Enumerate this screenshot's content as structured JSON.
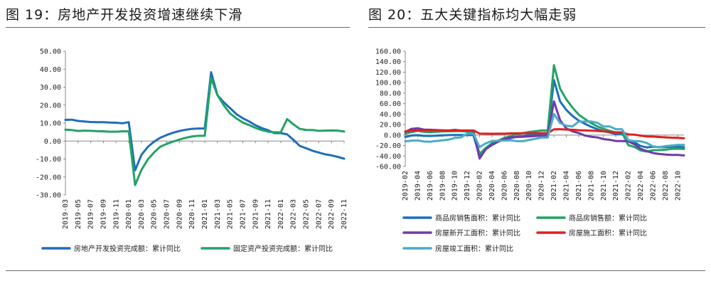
{
  "titles": {
    "left": "图 19：房地产开发投资增速继续下滑",
    "right": "图 20：五大关键指标均大幅走弱"
  },
  "chart_data": [
    {
      "type": "line",
      "x": [
        "2019-03",
        "2019-04",
        "2019-05",
        "2019-06",
        "2019-07",
        "2019-08",
        "2019-09",
        "2019-10",
        "2019-11",
        "2019-12",
        "2020-01",
        "2020-02",
        "2020-03",
        "2020-04",
        "2020-05",
        "2020-06",
        "2020-07",
        "2020-08",
        "2020-09",
        "2020-10",
        "2020-11",
        "2020-12",
        "2021-01",
        "2021-02",
        "2021-03",
        "2021-04",
        "2021-05",
        "2021-06",
        "2021-07",
        "2021-08",
        "2021-09",
        "2021-10",
        "2021-11",
        "2021-12",
        "2022-01",
        "2022-02",
        "2022-03",
        "2022-04",
        "2022-05",
        "2022-06",
        "2022-07",
        "2022-08",
        "2022-09",
        "2022-10",
        "2022-11"
      ],
      "xticks": [
        "2019-03",
        "2019-05",
        "2019-07",
        "2019-09",
        "2019-11",
        "2020-01",
        "2020-03",
        "2020-05",
        "2020-07",
        "2020-09",
        "2020-11",
        "2021-01",
        "2021-03",
        "2021-05",
        "2021-07",
        "2021-09",
        "2021-11",
        "2022-01",
        "2022-03",
        "2022-05",
        "2022-07",
        "2022-09",
        "2022-11"
      ],
      "ylim": [
        -30,
        50
      ],
      "yticks": [
        "-30.00",
        "-20.00",
        "-10.00",
        "0.00",
        "10.00",
        "20.00",
        "30.00",
        "40.00",
        "50.00"
      ],
      "series": [
        {
          "name": "房地产开发投资完成额：累计同比",
          "color": "#1f6fb8",
          "values": [
            11.8,
            11.9,
            11.2,
            10.9,
            10.6,
            10.5,
            10.5,
            10.3,
            10.2,
            9.9,
            10.5,
            -16.3,
            -7.7,
            -3.3,
            -0.3,
            1.9,
            3.4,
            4.6,
            5.6,
            6.3,
            6.8,
            7.0,
            7.0,
            38.3,
            25.6,
            21.6,
            18.3,
            15.0,
            12.7,
            10.9,
            8.8,
            7.2,
            6.0,
            4.4,
            4.4,
            3.7,
            0.7,
            -2.7,
            -4.0,
            -5.4,
            -6.4,
            -7.4,
            -8.0,
            -8.8,
            -9.8
          ]
        },
        {
          "name": "固定资产投资完成额：累计同比",
          "color": "#21a366",
          "values": [
            6.3,
            6.1,
            5.6,
            5.8,
            5.7,
            5.5,
            5.4,
            5.2,
            5.2,
            5.4,
            5.4,
            -24.5,
            -16.1,
            -10.3,
            -6.3,
            -3.1,
            -1.6,
            -0.3,
            0.8,
            1.8,
            2.6,
            2.9,
            2.9,
            35.0,
            25.6,
            19.9,
            15.4,
            12.6,
            10.3,
            8.9,
            7.3,
            6.1,
            5.2,
            4.9,
            4.9,
            12.2,
            9.3,
            6.8,
            6.2,
            6.1,
            5.7,
            5.8,
            5.9,
            5.8,
            5.3
          ]
        }
      ]
    },
    {
      "type": "line",
      "x": [
        "2019-02",
        "2019-03",
        "2019-04",
        "2019-05",
        "2019-06",
        "2019-07",
        "2019-08",
        "2019-09",
        "2019-10",
        "2019-11",
        "2019-12",
        "2020-01",
        "2020-02",
        "2020-03",
        "2020-04",
        "2020-05",
        "2020-06",
        "2020-07",
        "2020-08",
        "2020-09",
        "2020-10",
        "2020-11",
        "2020-12",
        "2021-01",
        "2021-02",
        "2021-03",
        "2021-04",
        "2021-05",
        "2021-06",
        "2021-07",
        "2021-08",
        "2021-09",
        "2021-10",
        "2021-11",
        "2021-12",
        "2022-01",
        "2022-02",
        "2022-03",
        "2022-04",
        "2022-05",
        "2022-06",
        "2022-07",
        "2022-08",
        "2022-09",
        "2022-10",
        "2022-11"
      ],
      "xticks": [
        "2019-02",
        "2019-04",
        "2019-06",
        "2019-08",
        "2019-10",
        "2019-12",
        "2020-02",
        "2020-04",
        "2020-06",
        "2020-08",
        "2020-10",
        "2020-12",
        "2021-02",
        "2021-04",
        "2021-06",
        "2021-08",
        "2021-10",
        "2021-12",
        "2022-02",
        "2022-04",
        "2022-06",
        "2022-08",
        "2022-10"
      ],
      "ylim": [
        -60,
        160
      ],
      "yticks": [
        "-60.00",
        "-40.00",
        "-20.00",
        "0.00",
        "20.00",
        "40.00",
        "60.00",
        "80.00",
        "100.00",
        "120.00",
        "140.00",
        "160.00"
      ],
      "series": [
        {
          "name": "商品房销售面积：累计同比",
          "color": "#1f6fb8",
          "values": [
            -3.6,
            -0.9,
            -0.3,
            -1.6,
            -1.8,
            -1.3,
            -0.6,
            -0.1,
            0.1,
            0.2,
            -0.1,
            -0.1,
            -39.9,
            -26.3,
            -19.3,
            -12.3,
            -8.4,
            -5.8,
            -3.3,
            -1.8,
            0.0,
            1.3,
            2.6,
            2.6,
            104.9,
            63.8,
            48.1,
            36.4,
            27.7,
            21.5,
            15.9,
            11.3,
            7.3,
            4.8,
            1.9,
            1.9,
            -9.6,
            -13.8,
            -20.9,
            -23.6,
            -22.2,
            -23.1,
            -23.0,
            -22.2,
            -22.3,
            -23.3
          ]
        },
        {
          "name": "商品房销售额：累计同比",
          "color": "#21a366",
          "values": [
            2.8,
            5.6,
            8.1,
            6.1,
            5.6,
            6.2,
            7.1,
            7.1,
            7.3,
            7.3,
            6.5,
            6.5,
            -35.9,
            -24.7,
            -15.5,
            -10.6,
            -5.4,
            -2.1,
            1.6,
            3.7,
            5.8,
            7.2,
            8.7,
            8.7,
            133.4,
            88.5,
            68.0,
            52.4,
            38.9,
            30.7,
            22.8,
            16.6,
            11.8,
            8.0,
            4.8,
            4.8,
            -19.3,
            -22.7,
            -29.5,
            -31.5,
            -28.9,
            -28.8,
            -27.9,
            -26.3,
            -26.1,
            -26.6
          ]
        },
        {
          "name": "房屋新开工面积：累计同比",
          "color": "#6f3ba8",
          "values": [
            6.0,
            11.9,
            13.1,
            10.5,
            10.1,
            9.5,
            8.9,
            8.6,
            10.0,
            8.6,
            8.5,
            8.5,
            -44.9,
            -27.2,
            -18.4,
            -12.8,
            -7.6,
            -4.5,
            -3.6,
            -3.4,
            -2.6,
            -2.0,
            -1.2,
            -1.2,
            64.3,
            28.2,
            12.8,
            6.9,
            3.8,
            -0.9,
            -3.2,
            -4.5,
            -7.7,
            -9.1,
            -11.4,
            -11.4,
            -12.2,
            -17.5,
            -26.3,
            -30.6,
            -34.4,
            -36.1,
            -37.2,
            -38.0,
            -37.8,
            -38.9
          ]
        },
        {
          "name": "房屋施工面积：累计同比",
          "color": "#e02020",
          "values": [
            6.8,
            8.2,
            8.8,
            8.8,
            8.8,
            9.0,
            8.8,
            8.7,
            9.0,
            8.7,
            8.7,
            8.7,
            2.9,
            2.6,
            2.5,
            2.6,
            2.6,
            3.1,
            3.3,
            3.4,
            3.4,
            3.5,
            3.7,
            3.7,
            10.9,
            11.2,
            10.5,
            10.1,
            9.2,
            9.0,
            8.4,
            7.9,
            7.1,
            6.1,
            5.2,
            5.2,
            1.2,
            0.7,
            -1.0,
            -2.5,
            -3.0,
            -3.6,
            -4.4,
            -5.0,
            -5.3,
            -6.2
          ]
        },
        {
          "name": "房屋竣工面积：累计同比",
          "color": "#4bacc6",
          "values": [
            -11.9,
            -10.8,
            -10.3,
            -12.4,
            -12.7,
            -11.3,
            -10.0,
            -8.6,
            -5.5,
            -4.5,
            2.6,
            2.6,
            -22.9,
            -15.8,
            -11.2,
            -10.8,
            -10.5,
            -10.0,
            -11.6,
            -11.8,
            -9.2,
            -7.3,
            -4.9,
            -4.9,
            40.4,
            22.9,
            17.9,
            16.4,
            25.7,
            25.7,
            25.9,
            23.4,
            16.3,
            16.3,
            11.2,
            11.2,
            -9.8,
            -11.5,
            -11.9,
            -15.3,
            -21.5,
            -23.3,
            -21.1,
            -19.9,
            -18.7,
            -18.7
          ]
        }
      ]
    }
  ]
}
